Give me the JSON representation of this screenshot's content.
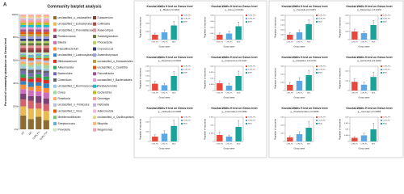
{
  "chart_data": [
    {
      "type": "stacked-bar",
      "panel": "A",
      "title": "Community barplot analysis",
      "ylabel": "Percent of community abundance on Genus level",
      "categories": [
        "HC",
        "MC",
        "CON_Po",
        "CON_Pre"
      ],
      "ylim": [
        0,
        100
      ],
      "yticks": [
        {
          "value": 0,
          "label": "0%"
        },
        {
          "value": 20,
          "label": "20%"
        },
        {
          "value": 40,
          "label": "40%"
        },
        {
          "value": 60,
          "label": "60%"
        },
        {
          "value": 80,
          "label": "80%"
        },
        {
          "value": 100,
          "label": "100%"
        }
      ],
      "series": [
        {
          "name": "unclassified_o_unclassified",
          "color": "#8c6d31",
          "values": [
            12,
            9,
            11,
            8
          ]
        },
        {
          "name": "unclassified_f_Eubacteriales",
          "color": "#e7ba52",
          "values": [
            8,
            9,
            7,
            8
          ]
        },
        {
          "name": "unclassified_f_Prevotellaceae",
          "color": "#d6616b",
          "values": [
            6,
            7,
            5,
            6
          ]
        },
        {
          "name": "Ruminococcus",
          "color": "#7b4173",
          "values": [
            5,
            4,
            6,
            5
          ]
        },
        {
          "name": "Blautia",
          "color": "#ce6dbd",
          "values": [
            4,
            5,
            4,
            5
          ]
        },
        {
          "name": "Faecalibacterium",
          "color": "#fd8d3c",
          "values": [
            4,
            3,
            5,
            4
          ]
        },
        {
          "name": "unclassified_f_Lachnospiraceae",
          "color": "#3182bd",
          "values": [
            3,
            4,
            3,
            4
          ]
        },
        {
          "name": "Bifidobacterium",
          "color": "#de2d26",
          "values": [
            3,
            3,
            4,
            3
          ]
        },
        {
          "name": "Akkermansia",
          "color": "#31a354",
          "values": [
            3,
            2,
            3,
            3
          ]
        },
        {
          "name": "Bacteroides",
          "color": "#756bb1",
          "values": [
            3,
            3,
            2,
            3
          ]
        },
        {
          "name": "Clostridium",
          "color": "#636363",
          "values": [
            2,
            3,
            2,
            2
          ]
        },
        {
          "name": "unclassified_f_Ruminococcaceae",
          "color": "#9ecae1",
          "values": [
            2,
            2,
            3,
            2
          ]
        },
        {
          "name": "Dorea",
          "color": "#a1d99b",
          "values": [
            2,
            2,
            2,
            3
          ]
        },
        {
          "name": "Roseburia",
          "color": "#fdae6b",
          "values": [
            2,
            2,
            2,
            2
          ]
        },
        {
          "name": "unclassified_o_Firmicutes",
          "color": "#bcbddc",
          "values": [
            2,
            2,
            2,
            2
          ]
        },
        {
          "name": "unclassified_f_Virus",
          "color": "#e6550d",
          "values": [
            2,
            2,
            1,
            2
          ]
        },
        {
          "name": "Mediterraneibacter",
          "color": "#74c476",
          "values": [
            2,
            1,
            2,
            2
          ]
        },
        {
          "name": "Streptococcus",
          "color": "#6baed6",
          "values": [
            1,
            2,
            2,
            1
          ]
        },
        {
          "name": "Prevotella",
          "color": "#c7e9c0",
          "values": [
            1,
            2,
            1,
            2
          ]
        },
        {
          "name": "Eubacterium",
          "color": "#843c39",
          "values": [
            2,
            2,
            2,
            2
          ]
        },
        {
          "name": "Collinsella",
          "color": "#ad494a",
          "values": [
            2,
            2,
            2,
            2
          ]
        },
        {
          "name": "Anaerostipes",
          "color": "#e7969c",
          "values": [
            2,
            2,
            2,
            2
          ]
        },
        {
          "name": "Subdoligranulum",
          "color": "#637939",
          "values": [
            2,
            2,
            2,
            2
          ]
        },
        {
          "name": "Phocaeicola",
          "color": "#b5cf6b",
          "values": [
            2,
            2,
            2,
            2
          ]
        },
        {
          "name": "Coprococcus",
          "color": "#393b79",
          "values": [
            2,
            2,
            2,
            2
          ]
        },
        {
          "name": "Anaerobutyricum",
          "color": "#9c9ede",
          "values": [
            2,
            2,
            2,
            2
          ]
        },
        {
          "name": "unclassified_o_Eubacteriales",
          "color": "#bd9e39",
          "values": [
            2,
            2,
            2,
            2
          ]
        },
        {
          "name": "unclassified_c_Clostridia",
          "color": "#e6550d",
          "values": [
            2,
            2,
            2,
            2
          ]
        },
        {
          "name": "Flavonifractor",
          "color": "#a55194",
          "values": [
            2,
            2,
            2,
            2
          ]
        },
        {
          "name": "unclassified_f_Bacteroidales",
          "color": "#de9ed6",
          "values": [
            2,
            2,
            2,
            2
          ]
        },
        {
          "name": "Parabacteroides",
          "color": "#17becf",
          "values": [
            2,
            2,
            2,
            2
          ]
        },
        {
          "name": "Escherichia",
          "color": "#bcbd22",
          "values": [
            2,
            2,
            2,
            2
          ]
        },
        {
          "name": "Gemmiger",
          "color": "#ff9896",
          "values": [
            2,
            2,
            2,
            2
          ]
        },
        {
          "name": "Klebsiella",
          "color": "#c5b0d5",
          "values": [
            1,
            1,
            1,
            1
          ]
        },
        {
          "name": "Adlercreutzia",
          "color": "#f7b6d2",
          "values": [
            1,
            1,
            1,
            1
          ]
        },
        {
          "name": "unclassified_o_Oscillospirales",
          "color": "#dbdb8d",
          "values": [
            1,
            1,
            1,
            1
          ]
        },
        {
          "name": "Bilophila",
          "color": "#ffbb78",
          "values": [
            1,
            1,
            1,
            1
          ]
        },
        {
          "name": "Megamonas",
          "color": "#f4a3b4",
          "values": [
            1,
            1,
            1,
            1
          ]
        }
      ]
    },
    {
      "type": "bar",
      "panel": "B",
      "title": "Kruskal-Wallis H test on Genus level",
      "subtitle": "g__Blautia p=0.01632",
      "ylabel": "Proportion of sequences",
      "xlabel": "Group name",
      "categories": [
        "CON_Pre",
        "CON_Po",
        "MCK"
      ],
      "colors": [
        "#e8483b",
        "#5aa9e6",
        "#1aa39a"
      ],
      "values": [
        0.012,
        0.018,
        0.035
      ],
      "errors": [
        0.004,
        0.006,
        0.01
      ],
      "ylim": [
        0,
        0.06
      ],
      "yticks": [
        0,
        0.02,
        0.04,
        0.06
      ]
    },
    {
      "type": "bar",
      "title": "Kruskal-Wallis H test on Genus level",
      "subtitle": "g__Dorea p=0.02411",
      "ylabel": "Proportion of sequences",
      "xlabel": "Group name",
      "categories": [
        "CON_Pre",
        "CON_Po",
        "MCK"
      ],
      "colors": [
        "#e8483b",
        "#5aa9e6",
        "#1aa39a"
      ],
      "values": [
        0.008,
        0.01,
        0.022
      ],
      "errors": [
        0.003,
        0.004,
        0.007
      ],
      "ylim": [
        0,
        0.04
      ],
      "yticks": [
        0,
        0.01,
        0.02,
        0.03,
        0.04
      ]
    },
    {
      "type": "bar",
      "title": "Kruskal-Wallis H test on Genus level",
      "subtitle": "g__Roseburia p=0.03015",
      "ylabel": "Proportion of sequences",
      "xlabel": "Group name",
      "categories": [
        "CON_Pre",
        "CON_Po",
        "MCK"
      ],
      "colors": [
        "#e8483b",
        "#5aa9e6",
        "#1aa39a"
      ],
      "values": [
        0.014,
        0.011,
        0.03
      ],
      "errors": [
        0.005,
        0.004,
        0.009
      ],
      "ylim": [
        0,
        0.05
      ],
      "yticks": [
        0,
        0.01,
        0.02,
        0.03,
        0.04,
        0.05
      ]
    },
    {
      "type": "bar",
      "title": "Kruskal-Wallis H test on Genus level",
      "subtitle": "g__Coprococcus p=0.04127",
      "ylabel": "Proportion of sequences",
      "xlabel": "Group name",
      "categories": [
        "CON_Pre",
        "CON_Po",
        "MCK"
      ],
      "colors": [
        "#e8483b",
        "#5aa9e6",
        "#1aa39a"
      ],
      "values": [
        0.006,
        0.004,
        0.012
      ],
      "errors": [
        0.002,
        0.002,
        0.004
      ],
      "ylim": [
        0,
        0.02
      ],
      "yticks": [
        0,
        0.005,
        0.01,
        0.015,
        0.02
      ]
    },
    {
      "type": "bar",
      "title": "Kruskal-Wallis H test on Genus level",
      "subtitle": "g__Collinsella p=0.03388",
      "ylabel": "Proportion of sequences",
      "xlabel": "Group name",
      "categories": [
        "CON_Pre",
        "CON_Po",
        "MCK"
      ],
      "colors": [
        "#e8483b",
        "#5aa9e6",
        "#1aa39a"
      ],
      "values": [
        0.005,
        0.008,
        0.016
      ],
      "errors": [
        0.002,
        0.003,
        0.006
      ],
      "ylim": [
        0,
        0.025
      ],
      "yticks": [
        0,
        0.01,
        0.02
      ]
    },
    {
      "type": "bar",
      "title": "Kruskal-Wallis H test on Genus level",
      "subtitle": "g__Anaerostipes p=0.04562",
      "ylabel": "Proportion of sequences",
      "xlabel": "Group name",
      "categories": [
        "CON_Pre",
        "CON_Po",
        "MCK"
      ],
      "colors": [
        "#e8483b",
        "#5aa9e6",
        "#1aa39a"
      ],
      "values": [
        0.004,
        0.003,
        0.009
      ],
      "errors": [
        0.002,
        0.001,
        0.004
      ],
      "ylim": [
        0,
        0.015
      ],
      "yticks": [
        0,
        0.005,
        0.01,
        0.015
      ]
    },
    {
      "type": "bar",
      "panel": "C",
      "title": "Kruskal-Wallis H test on Genus level",
      "subtitle": "g__Prevotella p=0.01874",
      "ylabel": "Proportion of sequences",
      "xlabel": "Group name",
      "categories": [
        "CON_Pre",
        "CON_Po",
        "MCK"
      ],
      "colors": [
        "#e8483b",
        "#5aa9e6",
        "#1aa39a"
      ],
      "values": [
        0.01,
        0.015,
        0.032
      ],
      "errors": [
        0.004,
        0.005,
        0.009
      ],
      "ylim": [
        0,
        0.05
      ],
      "yticks": [
        0,
        0.01,
        0.02,
        0.03,
        0.04,
        0.05
      ]
    },
    {
      "type": "bar",
      "title": "Kruskal-Wallis H test on Genus level",
      "subtitle": "g__Bacteroides p=0.02263",
      "ylabel": "Proportion of sequences",
      "xlabel": "Group name",
      "categories": [
        "CON_Pre",
        "CON_Po",
        "MCK"
      ],
      "colors": [
        "#e8483b",
        "#5aa9e6",
        "#1aa39a"
      ],
      "values": [
        0.02,
        0.016,
        0.036
      ],
      "errors": [
        0.006,
        0.005,
        0.011
      ],
      "ylim": [
        0,
        0.06
      ],
      "yticks": [
        0,
        0.02,
        0.04,
        0.06
      ]
    },
    {
      "type": "bar",
      "title": "Kruskal-Wallis H test on Genus level",
      "subtitle": "g__Clostridium p=0.03741",
      "ylabel": "Proportion of sequences",
      "xlabel": "Group name",
      "categories": [
        "CON_Pre",
        "CON_Po",
        "MCK"
      ],
      "colors": [
        "#e8483b",
        "#5aa9e6",
        "#1aa39a"
      ],
      "values": [
        0.007,
        0.012,
        0.019
      ],
      "errors": [
        0.003,
        0.004,
        0.006
      ],
      "ylim": [
        0,
        0.03
      ],
      "yticks": [
        0,
        0.01,
        0.02,
        0.03
      ]
    },
    {
      "type": "bar",
      "title": "Kruskal-Wallis H test on Genus level",
      "subtitle": "g__Escherichia p=0.04418",
      "ylabel": "Proportion of sequences",
      "xlabel": "Group name",
      "categories": [
        "CON_Pre",
        "CON_Po",
        "MCK"
      ],
      "colors": [
        "#e8483b",
        "#5aa9e6",
        "#1aa39a"
      ],
      "values": [
        0.009,
        0.006,
        0.014
      ],
      "errors": [
        0.003,
        0.003,
        0.005
      ],
      "ylim": [
        0,
        0.025
      ],
      "yticks": [
        0,
        0.01,
        0.02
      ]
    },
    {
      "type": "bar",
      "title": "Kruskal-Wallis H test on Genus level",
      "subtitle": "g__Parabacteroides p=0.02956",
      "ylabel": "Proportion of sequences",
      "xlabel": "Group name",
      "categories": [
        "CON_Pre",
        "CON_Po",
        "MCK"
      ],
      "colors": [
        "#e8483b",
        "#5aa9e6",
        "#1aa39a"
      ],
      "values": [
        0.005,
        0.009,
        0.017
      ],
      "errors": [
        0.002,
        0.003,
        0.008
      ],
      "ylim": [
        0,
        0.03
      ],
      "yticks": [
        0,
        0.01,
        0.02,
        0.03
      ]
    },
    {
      "type": "bar",
      "title": "Kruskal-Wallis H test on Genus level",
      "subtitle": "g__Gemmiger p=0.04893",
      "ylabel": "Proportion of sequences",
      "xlabel": "Group name",
      "categories": [
        "CON_Pre",
        "CON_Po",
        "MCK"
      ],
      "colors": [
        "#e8483b",
        "#5aa9e6",
        "#1aa39a"
      ],
      "values": [
        0.003,
        0.005,
        0.01
      ],
      "errors": [
        0.001,
        0.002,
        0.005
      ],
      "ylim": [
        0,
        0.02
      ],
      "yticks": [
        0,
        0.005,
        0.01,
        0.015,
        0.02
      ]
    }
  ]
}
